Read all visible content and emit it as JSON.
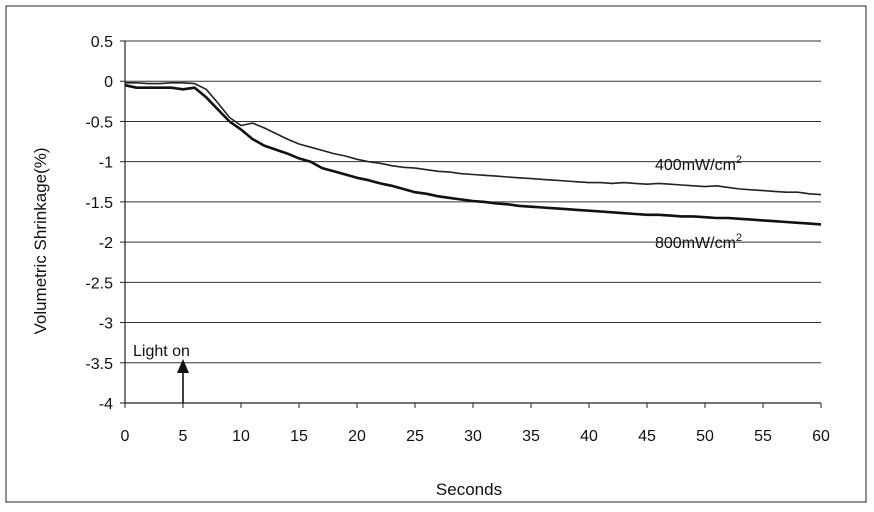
{
  "chart_data": {
    "type": "line",
    "title": "",
    "xlabel": "Seconds",
    "ylabel": "Volumetric Shrinkage(%)",
    "xlim": [
      0,
      60
    ],
    "ylim": [
      -4,
      0.5
    ],
    "x_ticks": [
      "0",
      "5",
      "10",
      "15",
      "20",
      "25",
      "30",
      "35",
      "40",
      "45",
      "50",
      "55",
      "60"
    ],
    "y_ticks": [
      "0.5",
      "0",
      "-0.5",
      "-1",
      "-1.5",
      "-2",
      "-2.5",
      "-3",
      "-3.5",
      "-4"
    ],
    "grid": "horizontal",
    "series": [
      {
        "name": "400mW/cm",
        "name_superscript": "2",
        "x": [
          0,
          1,
          2,
          3,
          4,
          5,
          6,
          7,
          8,
          9,
          10,
          11,
          12,
          13,
          14,
          15,
          16,
          17,
          18,
          19,
          20,
          21,
          22,
          23,
          24,
          25,
          26,
          27,
          28,
          29,
          30,
          31,
          32,
          33,
          34,
          35,
          36,
          37,
          38,
          39,
          40,
          41,
          42,
          43,
          44,
          45,
          46,
          47,
          48,
          49,
          50,
          51,
          52,
          53,
          54,
          55,
          56,
          57,
          58,
          59,
          60
        ],
        "y": [
          -0.02,
          -0.02,
          -0.03,
          -0.03,
          -0.02,
          -0.02,
          -0.03,
          -0.1,
          -0.27,
          -0.45,
          -0.55,
          -0.52,
          -0.58,
          -0.65,
          -0.72,
          -0.78,
          -0.82,
          -0.86,
          -0.9,
          -0.93,
          -0.97,
          -1.0,
          -1.02,
          -1.05,
          -1.07,
          -1.08,
          -1.1,
          -1.12,
          -1.13,
          -1.15,
          -1.16,
          -1.17,
          -1.18,
          -1.19,
          -1.2,
          -1.21,
          -1.22,
          -1.23,
          -1.24,
          -1.25,
          -1.26,
          -1.26,
          -1.27,
          -1.26,
          -1.27,
          -1.28,
          -1.27,
          -1.28,
          -1.29,
          -1.3,
          -1.31,
          -1.3,
          -1.32,
          -1.34,
          -1.35,
          -1.36,
          -1.37,
          -1.38,
          -1.38,
          -1.4,
          -1.41
        ],
        "color": "#222222"
      },
      {
        "name": "800mW/cm",
        "name_superscript": "2",
        "x": [
          0,
          1,
          2,
          3,
          4,
          5,
          6,
          7,
          8,
          9,
          10,
          11,
          12,
          13,
          14,
          15,
          16,
          17,
          18,
          19,
          20,
          21,
          22,
          23,
          24,
          25,
          26,
          27,
          28,
          29,
          30,
          31,
          32,
          33,
          34,
          35,
          36,
          37,
          38,
          39,
          40,
          41,
          42,
          43,
          44,
          45,
          46,
          47,
          48,
          49,
          50,
          51,
          52,
          53,
          54,
          55,
          56,
          57,
          58,
          59,
          60
        ],
        "y": [
          -0.05,
          -0.08,
          -0.08,
          -0.08,
          -0.08,
          -0.1,
          -0.08,
          -0.2,
          -0.35,
          -0.5,
          -0.6,
          -0.72,
          -0.8,
          -0.85,
          -0.9,
          -0.96,
          -1.0,
          -1.08,
          -1.12,
          -1.16,
          -1.2,
          -1.23,
          -1.27,
          -1.3,
          -1.34,
          -1.38,
          -1.4,
          -1.43,
          -1.45,
          -1.47,
          -1.49,
          -1.5,
          -1.52,
          -1.53,
          -1.55,
          -1.56,
          -1.57,
          -1.58,
          -1.59,
          -1.6,
          -1.61,
          -1.62,
          -1.63,
          -1.64,
          -1.65,
          -1.66,
          -1.66,
          -1.67,
          -1.68,
          -1.68,
          -1.69,
          -1.7,
          -1.7,
          -1.71,
          -1.72,
          -1.73,
          -1.74,
          -1.75,
          -1.76,
          -1.77,
          -1.78
        ],
        "color": "#111111"
      }
    ],
    "annotations": [
      {
        "text": "Light on",
        "x": 5,
        "arrow": true
      }
    ]
  }
}
